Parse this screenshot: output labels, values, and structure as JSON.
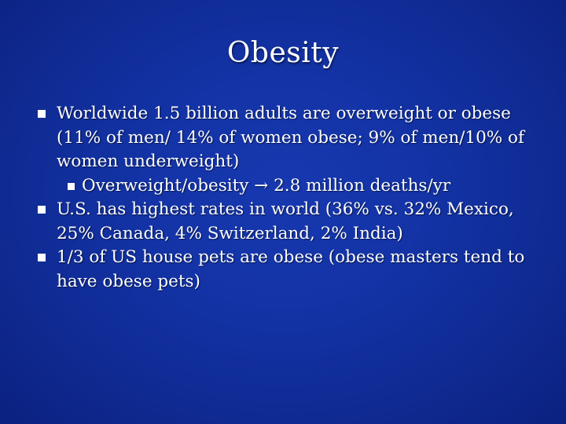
{
  "slide": {
    "title": "Obesity",
    "bullets": [
      {
        "text": "Worldwide 1.5 billion adults are overweight or obese (11% of men/ 14% of women obese; 9% of men/10% of women underweight)",
        "sub_bullets": [
          {
            "text": "Overweight/obesity → 2.8 million deaths/yr"
          }
        ]
      },
      {
        "text": "U.S. has highest rates in world (36% vs. 32% Mexico, 25% Canada, 4% Switzerland, 2% India)"
      },
      {
        "text": "1/3 of US house pets are obese (obese masters tend to have obese pets)"
      }
    ],
    "colors": {
      "background": "#1333a6",
      "text": "#ffffff"
    },
    "icons": {
      "bullet": "square-bullet-icon"
    }
  }
}
